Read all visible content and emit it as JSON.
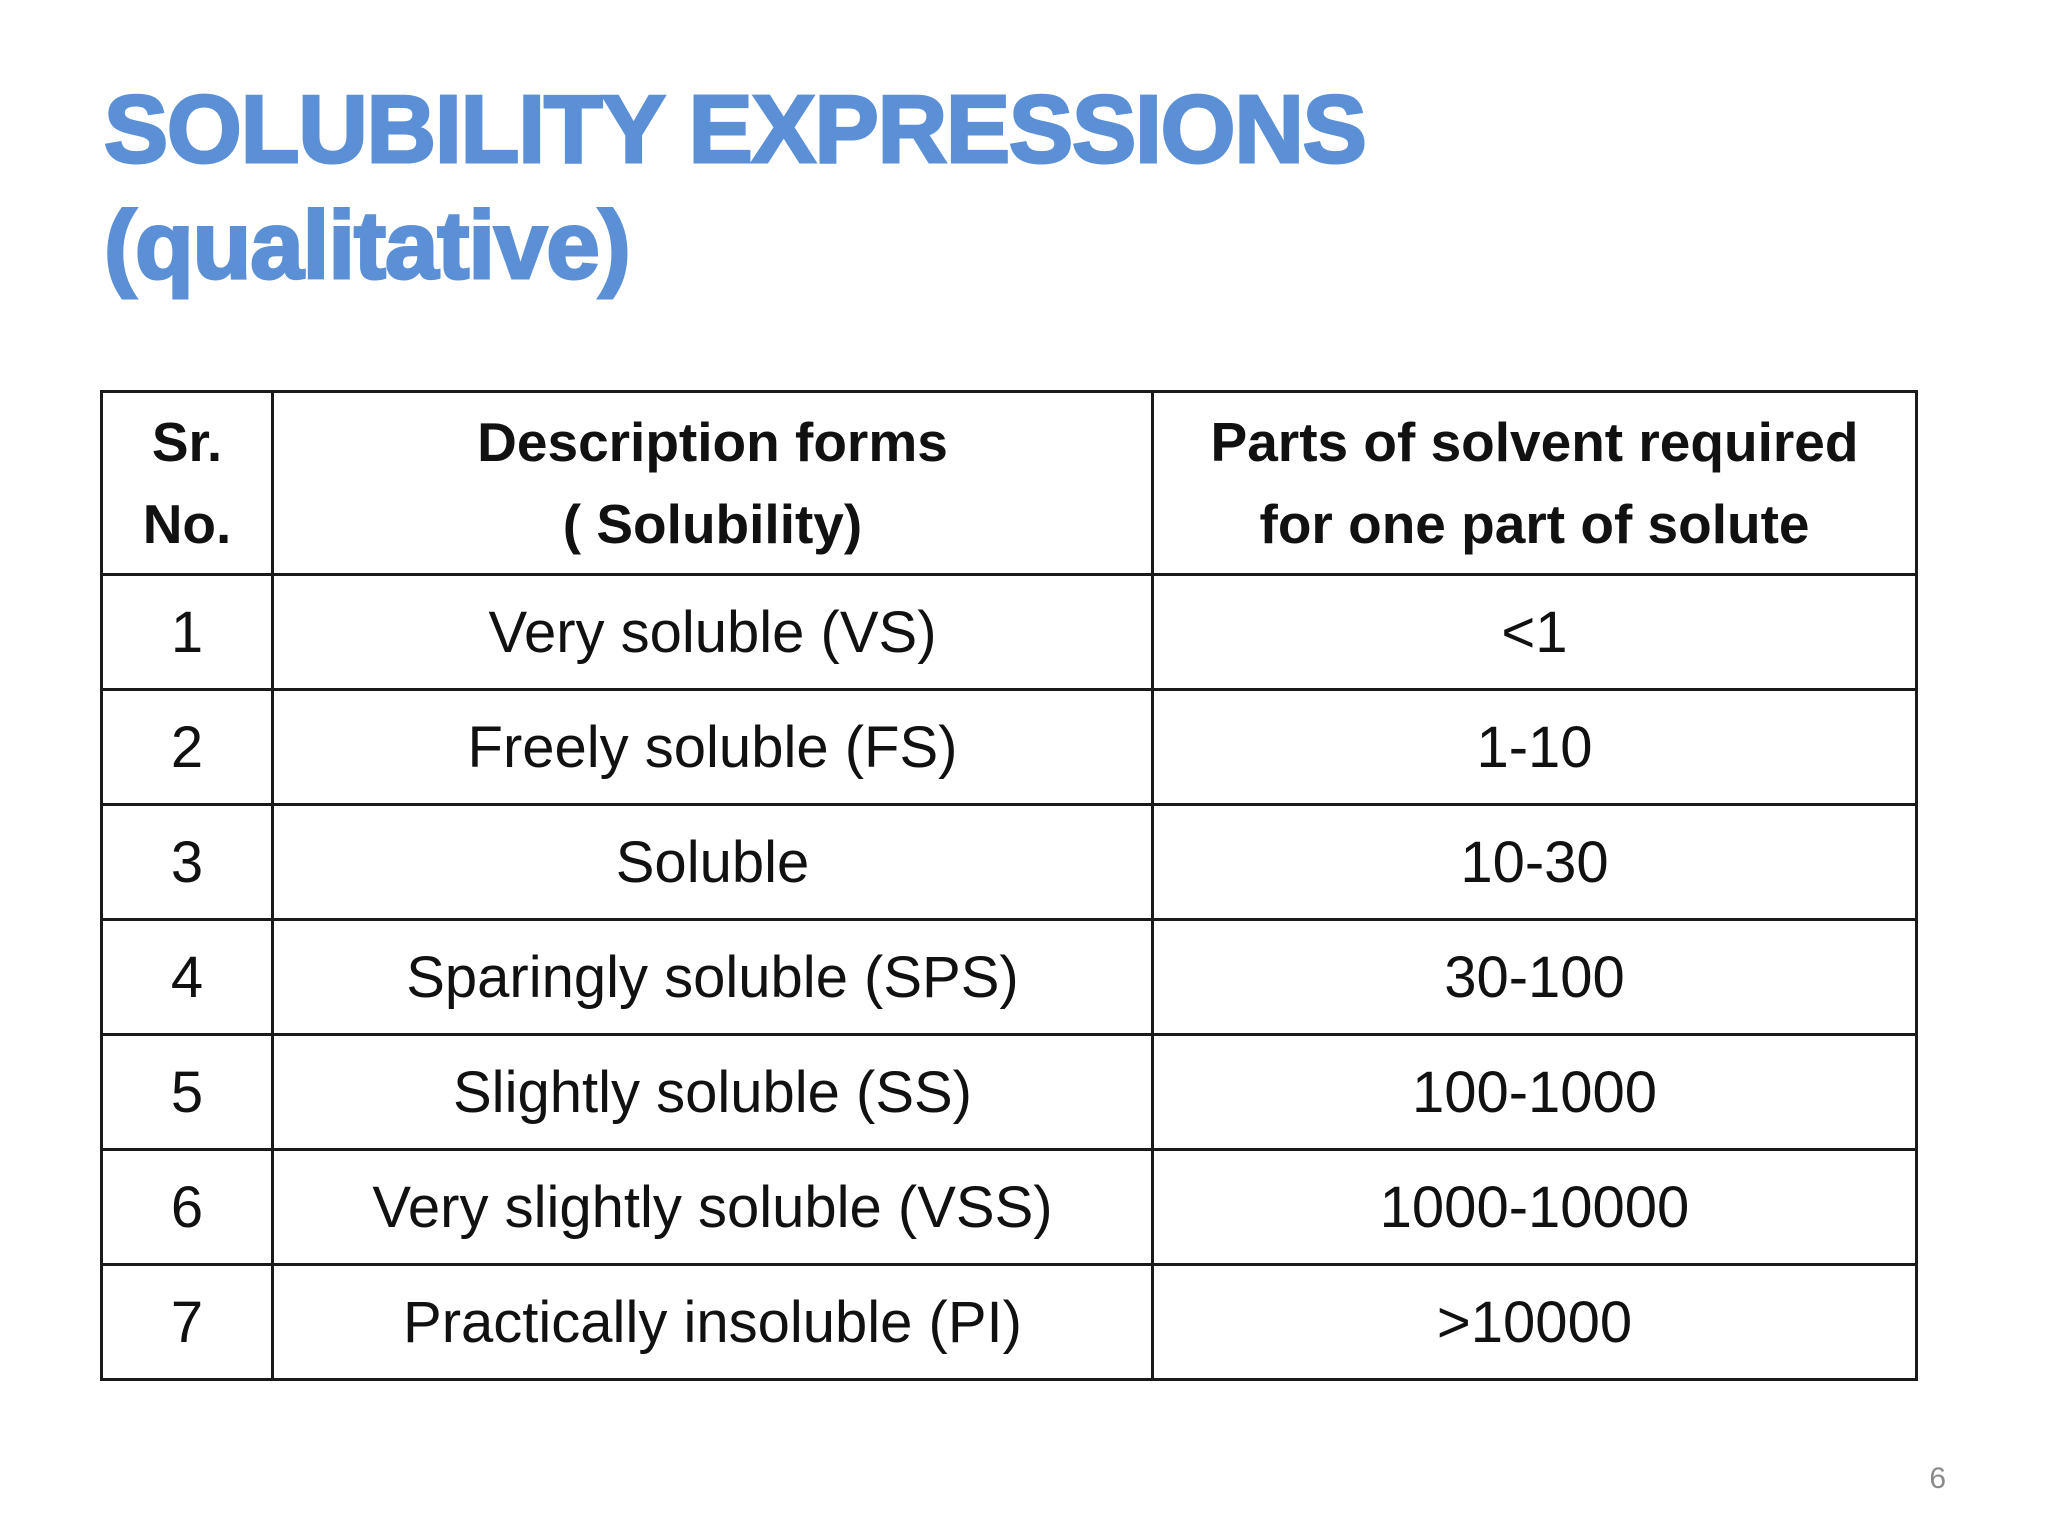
{
  "slide": {
    "title_line1": "SOLUBILITY EXPRESSIONS",
    "title_line2": "(qualitative)",
    "page_number": "6"
  },
  "table": {
    "headers": [
      {
        "line1": "Sr.",
        "line2": "No."
      },
      {
        "line1": "Description forms",
        "line2": "( Solubility)"
      },
      {
        "line1": "Parts of solvent required",
        "line2": "for one part of solute"
      }
    ],
    "rows": [
      {
        "no": "1",
        "description": "Very soluble (VS)",
        "parts": "<1"
      },
      {
        "no": "2",
        "description": "Freely soluble (FS)",
        "parts": "1-10"
      },
      {
        "no": "3",
        "description": "Soluble",
        "parts": "10-30"
      },
      {
        "no": "4",
        "description": "Sparingly soluble (SPS)",
        "parts": "30-100"
      },
      {
        "no": "5",
        "description": "Slightly soluble (SS)",
        "parts": "100-1000"
      },
      {
        "no": "6",
        "description": "Very slightly soluble (VSS)",
        "parts": "1000-10000"
      },
      {
        "no": "7",
        "description": "Practically insoluble (PI)",
        "parts": ">10000"
      }
    ]
  },
  "colors": {
    "title": "#5b8fd6",
    "text": "#111111",
    "border": "#1a1a1a",
    "page_number": "#8a8a8a"
  }
}
